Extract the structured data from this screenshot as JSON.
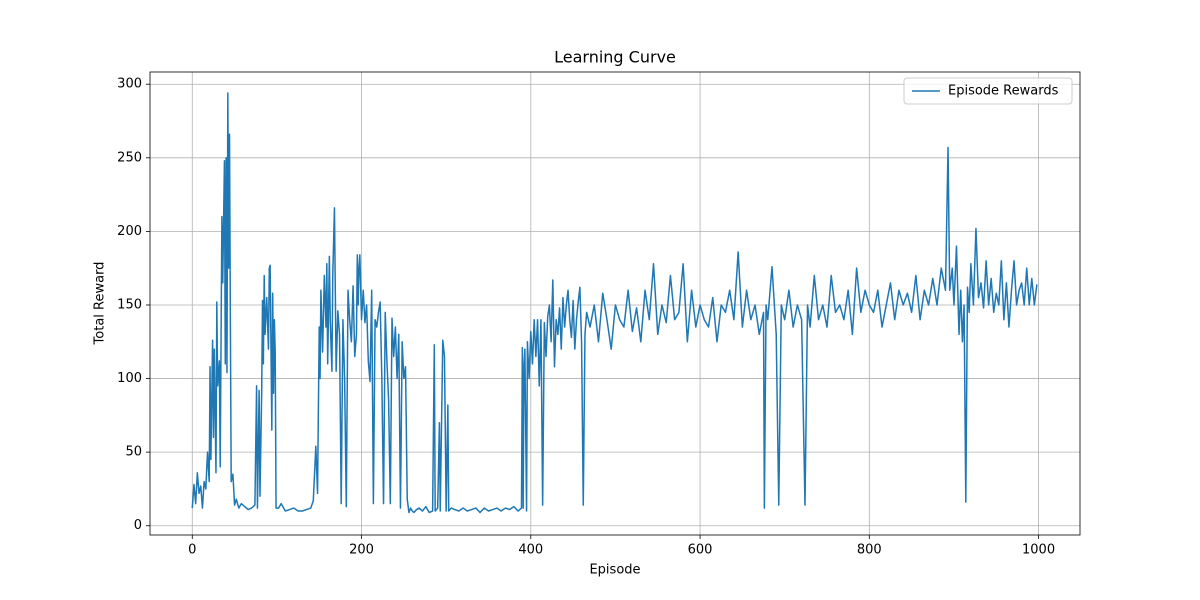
{
  "chart_data": {
    "type": "line",
    "title": "Learning Curve",
    "x_label": "Episode",
    "y_label": "Total Reward",
    "xlim": [
      -49.95,
      1048.95
    ],
    "ylim": [
      -6.3,
      308.3
    ],
    "xticks": [
      0,
      200,
      400,
      600,
      800,
      1000
    ],
    "yticks": [
      0,
      50,
      100,
      150,
      200,
      250,
      300
    ],
    "grid": true,
    "legend": "upper right",
    "x": [
      0,
      2,
      4,
      6,
      8,
      10,
      12,
      14,
      16,
      18,
      20,
      21,
      22,
      24,
      25,
      26,
      28,
      29,
      30,
      32,
      33,
      35,
      36,
      38,
      39,
      40,
      41,
      42,
      43,
      44,
      45,
      46,
      48,
      50,
      52,
      55,
      58,
      62,
      66,
      70,
      74,
      76,
      77,
      79,
      80,
      82,
      83,
      84,
      85,
      86,
      88,
      90,
      91,
      92,
      94,
      95,
      96,
      97,
      98,
      99,
      102,
      105,
      110,
      115,
      120,
      125,
      130,
      135,
      140,
      143,
      146,
      148,
      150,
      151,
      152,
      154,
      156,
      158,
      159,
      160,
      162,
      163,
      165,
      166,
      168,
      170,
      172,
      174,
      176,
      178,
      180,
      182,
      184,
      186,
      188,
      190,
      192,
      194,
      195,
      196,
      197,
      198,
      200,
      202,
      204,
      206,
      208,
      210,
      212,
      214,
      216,
      218,
      220,
      222,
      224,
      226,
      228,
      230,
      232,
      234,
      236,
      238,
      240,
      242,
      244,
      246,
      248,
      250,
      252,
      254,
      256,
      258,
      260,
      262,
      265,
      268,
      272,
      276,
      280,
      284,
      286,
      287,
      290,
      292,
      293,
      296,
      298,
      300,
      302,
      303,
      306,
      310,
      315,
      320,
      325,
      330,
      335,
      340,
      345,
      350,
      355,
      360,
      365,
      370,
      375,
      380,
      385,
      389,
      390,
      391,
      392,
      393,
      395,
      396,
      398,
      400,
      402,
      404,
      406,
      408,
      410,
      412,
      414,
      416,
      418,
      420,
      422,
      424,
      426,
      428,
      430,
      432,
      434,
      436,
      438,
      440,
      442,
      444,
      446,
      448,
      450,
      452,
      454,
      456,
      458,
      460,
      462,
      464,
      466,
      470,
      475,
      480,
      485,
      490,
      495,
      500,
      505,
      510,
      515,
      520,
      525,
      530,
      535,
      540,
      545,
      550,
      555,
      560,
      565,
      570,
      575,
      580,
      585,
      590,
      595,
      600,
      605,
      610,
      615,
      620,
      625,
      630,
      635,
      640,
      645,
      650,
      655,
      660,
      665,
      670,
      675,
      676,
      678,
      680,
      685,
      690,
      693,
      696,
      700,
      705,
      710,
      715,
      720,
      724,
      727,
      730,
      735,
      740,
      745,
      750,
      755,
      760,
      765,
      770,
      775,
      780,
      785,
      790,
      795,
      800,
      805,
      810,
      815,
      820,
      825,
      830,
      835,
      840,
      845,
      850,
      855,
      860,
      865,
      870,
      875,
      880,
      885,
      890,
      893,
      895,
      898,
      900,
      903,
      906,
      908,
      910,
      912,
      914,
      916,
      918,
      920,
      923,
      926,
      929,
      932,
      935,
      938,
      941,
      944,
      947,
      950,
      953,
      956,
      959,
      962,
      965,
      968,
      971,
      974,
      977,
      980,
      983,
      986,
      989,
      992,
      995,
      998
    ],
    "series": [
      {
        "name": "Episode Rewards",
        "color": "#1f77b4",
        "values": [
          12,
          28,
          15,
          36,
          22,
          27,
          12,
          30,
          25,
          50,
          30,
          108,
          45,
          126,
          60,
          120,
          36,
          152,
          95,
          112,
          40,
          210,
          165,
          248,
          110,
          250,
          104,
          294,
          175,
          266,
          140,
          30,
          35,
          14,
          18,
          12,
          15,
          13,
          11,
          12,
          14,
          95,
          12,
          92,
          20,
          90,
          153,
          110,
          170,
          130,
          155,
          120,
          175,
          177,
          65,
          158,
          90,
          140,
          118,
          12,
          12,
          15,
          10,
          11,
          12,
          10,
          10,
          11,
          12,
          17,
          54,
          22,
          135,
          100,
          160,
          118,
          170,
          135,
          178,
          110,
          183,
          140,
          105,
          170,
          216,
          105,
          146,
          130,
          15,
          140,
          100,
          13,
          160,
          140,
          125,
          163,
          115,
          130,
          184,
          150,
          175,
          184,
          140,
          160,
          138,
          150,
          112,
          98,
          160,
          15,
          140,
          135,
          145,
          152,
          100,
          15,
          145,
          112,
          85,
          15,
          141,
          115,
          135,
          100,
          130,
          12,
          125,
          100,
          108,
          18,
          9,
          12,
          10,
          9,
          11,
          12,
          10,
          13,
          9,
          10,
          123,
          10,
          12,
          70,
          10,
          126,
          115,
          10,
          82,
          10,
          12,
          11,
          10,
          12,
          10,
          11,
          12,
          9,
          12,
          10,
          11,
          12,
          10,
          12,
          11,
          13,
          10,
          12,
          121,
          12,
          110,
          120,
          10,
          125,
          100,
          132,
          110,
          140,
          115,
          140,
          95,
          140,
          14,
          138,
          115,
          142,
          150,
          125,
          167,
          108,
          140,
          130,
          148,
          120,
          155,
          135,
          150,
          160,
          140,
          128,
          153,
          120,
          140,
          152,
          162,
          125,
          14,
          130,
          145,
          135,
          150,
          125,
          158,
          140,
          120,
          150,
          140,
          135,
          160,
          132,
          148,
          125,
          160,
          140,
          178,
          130,
          150,
          138,
          170,
          140,
          145,
          178,
          125,
          160,
          135,
          150,
          140,
          135,
          155,
          125,
          150,
          145,
          160,
          140,
          186,
          135,
          160,
          140,
          150,
          130,
          145,
          12,
          150,
          140,
          176,
          130,
          14,
          150,
          140,
          160,
          135,
          150,
          140,
          14,
          150,
          135,
          170,
          140,
          150,
          135,
          170,
          145,
          150,
          140,
          160,
          130,
          175,
          145,
          160,
          150,
          145,
          160,
          135,
          150,
          165,
          140,
          160,
          150,
          158,
          145,
          170,
          140,
          160,
          150,
          168,
          150,
          175,
          160,
          257,
          160,
          175,
          150,
          190,
          130,
          160,
          125,
          150,
          16,
          162,
          145,
          178,
          150,
          202,
          155,
          165,
          148,
          180,
          150,
          168,
          145,
          158,
          150,
          180,
          140,
          165,
          135,
          160,
          180,
          150,
          160,
          165,
          150,
          175,
          150,
          168,
          150,
          164
        ]
      }
    ]
  }
}
